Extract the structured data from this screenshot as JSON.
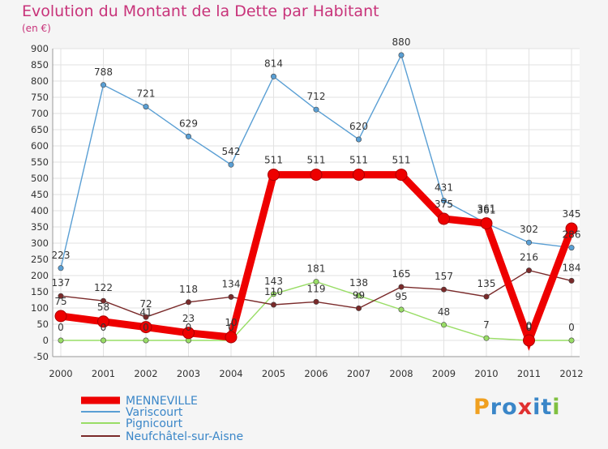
{
  "title": "Evolution du Montant de la Dette par Habitant",
  "subtitle": "(en €)",
  "logo_text": "Proxiti",
  "logo_letters": [
    {
      "ch": "P",
      "color": "#f0a020"
    },
    {
      "ch": "r",
      "color": "#3a86c8"
    },
    {
      "ch": "o",
      "color": "#3a86c8"
    },
    {
      "ch": "x",
      "color": "#e03030"
    },
    {
      "ch": "i",
      "color": "#3a86c8"
    },
    {
      "ch": "t",
      "color": "#3a86c8"
    },
    {
      "ch": "i",
      "color": "#80c040"
    }
  ],
  "chart_data": {
    "type": "line",
    "x": [
      "2000",
      "2001",
      "2002",
      "2003",
      "2004",
      "2005",
      "2006",
      "2007",
      "2008",
      "2009",
      "2010",
      "2011",
      "2012"
    ],
    "ylim": [
      -50,
      900
    ],
    "yticks": [
      -50,
      0,
      50,
      100,
      150,
      200,
      250,
      300,
      350,
      400,
      450,
      500,
      550,
      600,
      650,
      700,
      750,
      800,
      850,
      900
    ],
    "grid": true,
    "legend_position": "bottom-left",
    "series": [
      {
        "name": "MENNEVILLE",
        "color": "#ee0000",
        "values": [
          75,
          58,
          41,
          23,
          10,
          511,
          511,
          511,
          511,
          375,
          361,
          0,
          345
        ],
        "labels": [
          "75",
          "58",
          "41",
          "23",
          "10",
          "511",
          "511",
          "511",
          "511",
          "375",
          "361",
          "0",
          "345"
        ]
      },
      {
        "name": "Variscourt",
        "color": "#5a9fd4",
        "values": [
          223,
          788,
          721,
          629,
          542,
          814,
          712,
          620,
          880,
          431,
          361,
          302,
          286
        ],
        "labels": [
          "223",
          "788",
          "721",
          "629",
          "542",
          "814",
          "712",
          "620",
          "880",
          "431",
          "361",
          "302",
          "286"
        ]
      },
      {
        "name": "Pignicourt",
        "color": "#99dd66",
        "values": [
          0,
          0,
          0,
          0,
          0,
          143,
          181,
          138,
          95,
          48,
          7,
          0,
          0
        ],
        "labels": [
          "0",
          "0",
          "0",
          "0",
          "0",
          "143",
          "181",
          "138",
          "95",
          "48",
          "7",
          "0",
          "0"
        ]
      },
      {
        "name": "Neufchâtel-sur-Aisne",
        "color": "#7a2a2a",
        "values": [
          137,
          122,
          72,
          118,
          134,
          110,
          119,
          99,
          165,
          157,
          135,
          216,
          184
        ],
        "labels": [
          "137",
          "122",
          "72",
          "118",
          "134",
          "110",
          "119",
          "99",
          "165",
          "157",
          "135",
          "216",
          "184"
        ]
      }
    ]
  }
}
